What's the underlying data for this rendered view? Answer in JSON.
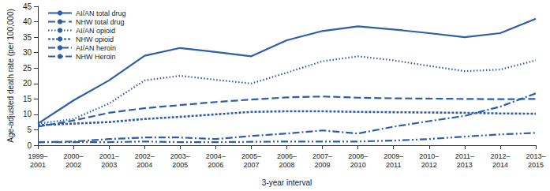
{
  "chart_data": {
    "type": "line",
    "x_label": "3-year interval",
    "y_label": "Age-adjusted death rate (per 100,000)",
    "categories": [
      "1999–2001",
      "2000–2002",
      "2001–2003",
      "2002–2004",
      "2003–2005",
      "2004–2006",
      "2005–2007",
      "2006–2008",
      "2007–2009",
      "2008–2010",
      "2009–2011",
      "2010–2012",
      "2011–2013",
      "2012–2014",
      "2013–2015"
    ],
    "ylim": [
      0,
      45
    ],
    "yticks": [
      0,
      5,
      10,
      15,
      20,
      25,
      30,
      35,
      40,
      45
    ],
    "grid": false,
    "legend": "upper left",
    "marker": "none",
    "series": [
      {
        "name": "AI/AN total drug",
        "color": "#2e5ea8",
        "line_style": "solid",
        "values": [
          7,
          14.5,
          21,
          29,
          31.5,
          30.2,
          28.8,
          34,
          37,
          38.5,
          37.5,
          36.3,
          35,
          36.3,
          41
        ]
      },
      {
        "name": "NHW total drug",
        "color": "#2e5ea8",
        "line_style": "dashed",
        "values": [
          6,
          8,
          10.5,
          12,
          13,
          14,
          14.8,
          15.5,
          15.8,
          15.4,
          15.2,
          15.1,
          15,
          14.9,
          15
        ]
      },
      {
        "name": "AI/AN opioid",
        "color": "#2e5ea8",
        "line_style": "dotted",
        "values": [
          7,
          8.5,
          13.5,
          21,
          22.5,
          21.2,
          20,
          23.5,
          27.2,
          28.8,
          27.5,
          25.7,
          24,
          24.5,
          27.5
        ]
      },
      {
        "name": "NHW opioid",
        "color": "#2e5ea8",
        "line_style": "dotted",
        "values": [
          6.5,
          7,
          7.5,
          8.5,
          9.2,
          10,
          10.8,
          11,
          11,
          10.8,
          10.7,
          10.6,
          10.5,
          10.3,
          10.2
        ]
      },
      {
        "name": "AI/AN heroin",
        "color": "#2e5ea8",
        "line_style": "dashdot",
        "values": [
          1,
          1.2,
          2,
          2.5,
          2.5,
          2,
          3,
          3.8,
          4.8,
          3.8,
          6,
          7.8,
          9.5,
          12.5,
          16.8
        ]
      },
      {
        "name": "NHW Heroin",
        "color": "#2e5ea8",
        "line_style": "dashdotdot",
        "values": [
          1,
          1,
          1,
          1.2,
          1,
          1,
          1.1,
          1.2,
          1.2,
          1.2,
          1.5,
          2,
          2.8,
          3.5,
          4
        ]
      }
    ]
  }
}
